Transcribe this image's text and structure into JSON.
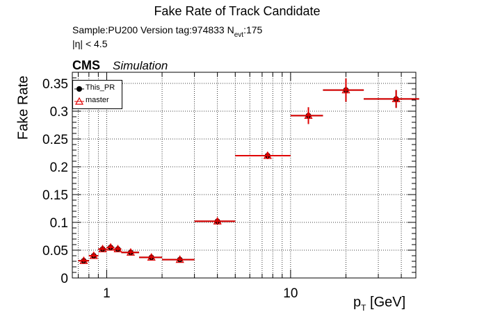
{
  "header": {
    "title": "Fake Rate of Track Candidate",
    "sample_text": "Sample:PU200   Version tag:974833  N",
    "sample_sub": "evt",
    "sample_tail": ":175",
    "eta_cut": "|η| < 4.5",
    "cms": "CMS",
    "simulation": "Simulation"
  },
  "axes": {
    "y_label": "Fake Rate",
    "x_label_main": "p",
    "x_label_sub": "T",
    "x_label_tail": " [GeV]"
  },
  "legend": {
    "this_pr": "This_PR",
    "master": "master"
  },
  "colors": {
    "this_pr": "#000000",
    "master": "#e00000",
    "grid": "#000000"
  },
  "chart_data": {
    "type": "scatter",
    "title": "Fake Rate of Track Candidate",
    "xlabel": "p_T [GeV]",
    "ylabel": "Fake Rate",
    "x_scale": "log",
    "xlim": [
      0.65,
      48
    ],
    "ylim": [
      0,
      0.37
    ],
    "grid": true,
    "legend_position": "top-left",
    "x_ticks": [
      1,
      10
    ],
    "x_tick_labels": [
      "1",
      "10"
    ],
    "y_ticks": [
      0,
      0.05,
      0.1,
      0.15,
      0.2,
      0.25,
      0.3,
      0.35
    ],
    "y_tick_labels": [
      "0",
      "0.05",
      "0.1",
      "0.15",
      "0.2",
      "0.25",
      "0.3",
      "0.35"
    ],
    "series": [
      {
        "name": "This_PR",
        "points": [
          {
            "x": 0.75,
            "xlo": 0.7,
            "xhi": 0.8,
            "y": 0.031,
            "err": 0.003
          },
          {
            "x": 0.85,
            "xlo": 0.8,
            "xhi": 0.9,
            "y": 0.04,
            "err": 0.003
          },
          {
            "x": 0.95,
            "xlo": 0.9,
            "xhi": 1.0,
            "y": 0.052,
            "err": 0.003
          },
          {
            "x": 1.05,
            "xlo": 1.0,
            "xhi": 1.1,
            "y": 0.055,
            "err": 0.003
          },
          {
            "x": 1.15,
            "xlo": 1.1,
            "xhi": 1.2,
            "y": 0.052,
            "err": 0.003
          },
          {
            "x": 1.35,
            "xlo": 1.2,
            "xhi": 1.5,
            "y": 0.046,
            "err": 0.003
          },
          {
            "x": 1.75,
            "xlo": 1.5,
            "xhi": 2.0,
            "y": 0.037,
            "err": 0.003
          },
          {
            "x": 2.5,
            "xlo": 2.0,
            "xhi": 3.0,
            "y": 0.033,
            "err": 0.003
          },
          {
            "x": 4.0,
            "xlo": 3.0,
            "xhi": 5.0,
            "y": 0.102,
            "err": 0.004
          },
          {
            "x": 7.5,
            "xlo": 5.0,
            "xhi": 10.0,
            "y": 0.22,
            "err": 0.006
          },
          {
            "x": 12.5,
            "xlo": 10.0,
            "xhi": 15.0,
            "y": 0.292,
            "err": 0.015
          },
          {
            "x": 20.0,
            "xlo": 15.0,
            "xhi": 25.0,
            "y": 0.338,
            "err": 0.021
          },
          {
            "x": 37.5,
            "xlo": 25.0,
            "xhi": 50.0,
            "y": 0.322,
            "err": 0.016
          }
        ]
      },
      {
        "name": "master",
        "points": [
          {
            "x": 0.75,
            "xlo": 0.7,
            "xhi": 0.8,
            "y": 0.031,
            "err": 0.003
          },
          {
            "x": 0.85,
            "xlo": 0.8,
            "xhi": 0.9,
            "y": 0.04,
            "err": 0.003
          },
          {
            "x": 0.95,
            "xlo": 0.9,
            "xhi": 1.0,
            "y": 0.052,
            "err": 0.003
          },
          {
            "x": 1.05,
            "xlo": 1.0,
            "xhi": 1.1,
            "y": 0.055,
            "err": 0.003
          },
          {
            "x": 1.15,
            "xlo": 1.1,
            "xhi": 1.2,
            "y": 0.052,
            "err": 0.003
          },
          {
            "x": 1.35,
            "xlo": 1.2,
            "xhi": 1.5,
            "y": 0.046,
            "err": 0.003
          },
          {
            "x": 1.75,
            "xlo": 1.5,
            "xhi": 2.0,
            "y": 0.037,
            "err": 0.003
          },
          {
            "x": 2.5,
            "xlo": 2.0,
            "xhi": 3.0,
            "y": 0.033,
            "err": 0.003
          },
          {
            "x": 4.0,
            "xlo": 3.0,
            "xhi": 5.0,
            "y": 0.102,
            "err": 0.004
          },
          {
            "x": 7.5,
            "xlo": 5.0,
            "xhi": 10.0,
            "y": 0.22,
            "err": 0.006
          },
          {
            "x": 12.5,
            "xlo": 10.0,
            "xhi": 15.0,
            "y": 0.292,
            "err": 0.015
          },
          {
            "x": 20.0,
            "xlo": 15.0,
            "xhi": 25.0,
            "y": 0.338,
            "err": 0.021
          },
          {
            "x": 37.5,
            "xlo": 25.0,
            "xhi": 50.0,
            "y": 0.322,
            "err": 0.016
          }
        ]
      }
    ]
  }
}
